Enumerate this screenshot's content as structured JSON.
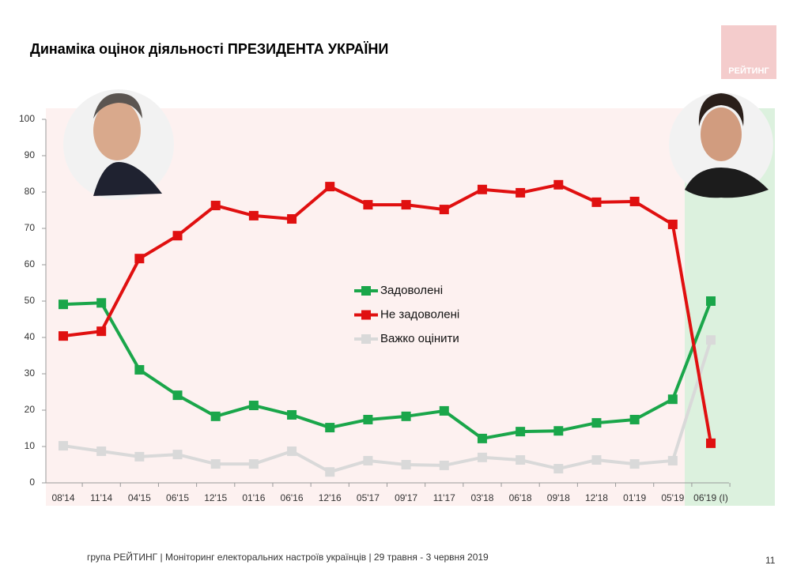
{
  "chart_data": {
    "type": "line",
    "title": "Динаміка оцінок діяльності ПРЕЗИДЕНТА УКРАЇНИ",
    "categories": [
      "08'14",
      "11'14",
      "04'15",
      "06'15",
      "12'15",
      "01'16",
      "06'16",
      "12'16",
      "05'17",
      "09'17",
      "11'17",
      "03'18",
      "06'18",
      "09'18",
      "12'18",
      "01'19",
      "05'19",
      "06'19 (I)"
    ],
    "series": [
      {
        "name": "Задоволені",
        "color": "#1aa64a",
        "values": [
          49.1,
          49.5,
          31.1,
          24.1,
          18.3,
          21.3,
          18.7,
          15.2,
          17.4,
          18.3,
          19.8,
          12.2,
          14.1,
          14.3,
          16.5,
          17.4,
          23,
          50
        ]
      },
      {
        "name": "Не задоволені",
        "color": "#e01010",
        "values": [
          40.4,
          41.7,
          61.7,
          68,
          76.3,
          73.5,
          72.6,
          81.5,
          76.5,
          76.5,
          75.2,
          80.7,
          79.8,
          82,
          77.2,
          77.4,
          71.1,
          10.9
        ]
      },
      {
        "name": "Важко оцінити",
        "color": "#d9d9d9",
        "values": [
          10.2,
          8.7,
          7.2,
          7.8,
          5.2,
          5.2,
          8.7,
          3,
          6.1,
          5,
          4.8,
          7,
          6.3,
          3.9,
          6.3,
          5.2,
          6.1,
          39.3
        ]
      }
    ],
    "ylim": [
      0,
      100
    ],
    "yticks": [
      0,
      10,
      20,
      30,
      40,
      50,
      60,
      70,
      80,
      90,
      100
    ],
    "grid": false
  },
  "logo": "РЕЙТИНГ",
  "footer": "група РЕЙТИНГ | Моніторинг електоральних настроїв українців  | 29 травня - 3 червня 2019",
  "page_number": "11"
}
